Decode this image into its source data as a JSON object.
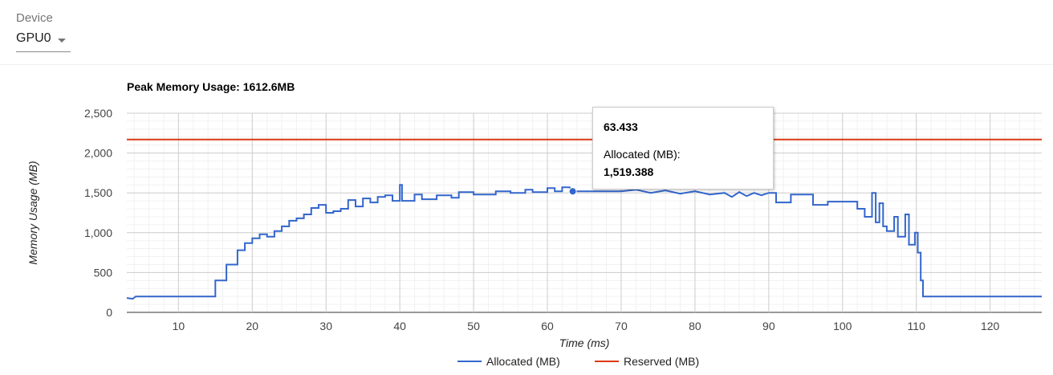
{
  "device": {
    "label": "Device",
    "selected": "GPU0"
  },
  "chart_data": {
    "type": "line",
    "title": "Peak Memory Usage: 1612.6MB",
    "xlabel": "Time (ms)",
    "ylabel": "Memory Usage (MB)",
    "xlim": [
      3,
      127
    ],
    "ylim": [
      0,
      2500
    ],
    "x_ticks": [
      10,
      20,
      30,
      40,
      50,
      60,
      70,
      80,
      90,
      100,
      110,
      120
    ],
    "y_ticks": [
      0,
      500,
      1000,
      1500,
      2000,
      2500
    ],
    "y_tick_labels": [
      "0",
      "500",
      "1,000",
      "1,500",
      "2,000",
      "2,500"
    ],
    "grid": true,
    "legend_position": "bottom",
    "series": [
      {
        "name": "Allocated (MB)",
        "color": "#3366cc",
        "step": true,
        "points": [
          [
            3,
            180
          ],
          [
            3.8,
            170
          ],
          [
            4.2,
            200
          ],
          [
            15,
            200
          ],
          [
            15,
            400
          ],
          [
            16.5,
            400
          ],
          [
            16.5,
            600
          ],
          [
            18,
            600
          ],
          [
            18,
            780
          ],
          [
            19,
            780
          ],
          [
            19,
            870
          ],
          [
            20,
            870
          ],
          [
            20,
            930
          ],
          [
            21,
            930
          ],
          [
            21,
            980
          ],
          [
            22,
            980
          ],
          [
            22,
            950
          ],
          [
            23,
            950
          ],
          [
            23,
            1020
          ],
          [
            24,
            1020
          ],
          [
            24,
            1080
          ],
          [
            25,
            1080
          ],
          [
            25,
            1150
          ],
          [
            26,
            1150
          ],
          [
            26,
            1180
          ],
          [
            27,
            1180
          ],
          [
            27,
            1230
          ],
          [
            28,
            1230
          ],
          [
            28,
            1310
          ],
          [
            29,
            1310
          ],
          [
            29,
            1350
          ],
          [
            30,
            1350
          ],
          [
            30,
            1250
          ],
          [
            31,
            1250
          ],
          [
            31,
            1270
          ],
          [
            32,
            1270
          ],
          [
            32,
            1300
          ],
          [
            33,
            1300
          ],
          [
            33,
            1410
          ],
          [
            34,
            1410
          ],
          [
            34,
            1330
          ],
          [
            35,
            1330
          ],
          [
            35,
            1430
          ],
          [
            36,
            1430
          ],
          [
            36,
            1380
          ],
          [
            37,
            1380
          ],
          [
            37,
            1450
          ],
          [
            38,
            1450
          ],
          [
            38,
            1470
          ],
          [
            39,
            1470
          ],
          [
            39,
            1400
          ],
          [
            40,
            1400
          ],
          [
            40,
            1600
          ],
          [
            40.3,
            1600
          ],
          [
            40.3,
            1400
          ],
          [
            42,
            1400
          ],
          [
            42,
            1480
          ],
          [
            43,
            1480
          ],
          [
            43,
            1420
          ],
          [
            45,
            1420
          ],
          [
            45,
            1470
          ],
          [
            47,
            1470
          ],
          [
            47,
            1440
          ],
          [
            48,
            1440
          ],
          [
            48,
            1510
          ],
          [
            50,
            1510
          ],
          [
            50,
            1480
          ],
          [
            53,
            1480
          ],
          [
            53,
            1520
          ],
          [
            55,
            1520
          ],
          [
            55,
            1500
          ],
          [
            57,
            1500
          ],
          [
            57,
            1540
          ],
          [
            58,
            1540
          ],
          [
            58,
            1510
          ],
          [
            60,
            1510
          ],
          [
            60,
            1560
          ],
          [
            61,
            1560
          ],
          [
            61,
            1520
          ],
          [
            62,
            1520
          ],
          [
            62,
            1570
          ],
          [
            63,
            1570
          ],
          [
            63.433,
            1519.388
          ],
          [
            70,
            1520
          ],
          [
            72,
            1540
          ],
          [
            74,
            1500
          ],
          [
            76,
            1530
          ],
          [
            78,
            1490
          ],
          [
            80,
            1520
          ],
          [
            82,
            1480
          ],
          [
            84,
            1500
          ],
          [
            85,
            1450
          ],
          [
            86,
            1510
          ],
          [
            87,
            1460
          ],
          [
            88,
            1500
          ],
          [
            89,
            1470
          ],
          [
            90,
            1500
          ],
          [
            91,
            1500
          ],
          [
            91,
            1380
          ],
          [
            93,
            1380
          ],
          [
            93,
            1480
          ],
          [
            96,
            1480
          ],
          [
            96,
            1350
          ],
          [
            98,
            1350
          ],
          [
            98,
            1390
          ],
          [
            102,
            1390
          ],
          [
            102,
            1300
          ],
          [
            103,
            1300
          ],
          [
            103,
            1200
          ],
          [
            104,
            1200
          ],
          [
            104,
            1500
          ],
          [
            104.5,
            1500
          ],
          [
            104.5,
            1130
          ],
          [
            105,
            1130
          ],
          [
            105,
            1370
          ],
          [
            105.5,
            1370
          ],
          [
            105.5,
            1080
          ],
          [
            106,
            1080
          ],
          [
            106,
            1020
          ],
          [
            107,
            1020
          ],
          [
            107,
            1200
          ],
          [
            107.5,
            1200
          ],
          [
            107.5,
            950
          ],
          [
            108.5,
            950
          ],
          [
            108.5,
            1230
          ],
          [
            109,
            1230
          ],
          [
            109,
            850
          ],
          [
            109.8,
            850
          ],
          [
            109.8,
            1000
          ],
          [
            110.2,
            1000
          ],
          [
            110.2,
            750
          ],
          [
            110.6,
            750
          ],
          [
            110.6,
            400
          ],
          [
            110.9,
            400
          ],
          [
            110.9,
            200
          ],
          [
            127,
            200
          ]
        ]
      },
      {
        "name": "Reserved (MB)",
        "color": "#dc3912",
        "step": true,
        "points": [
          [
            3,
            2170
          ],
          [
            127,
            2170
          ]
        ]
      }
    ],
    "tooltip": {
      "x": "63.433",
      "series": "Allocated (MB):",
      "value": "1,519.388"
    }
  }
}
